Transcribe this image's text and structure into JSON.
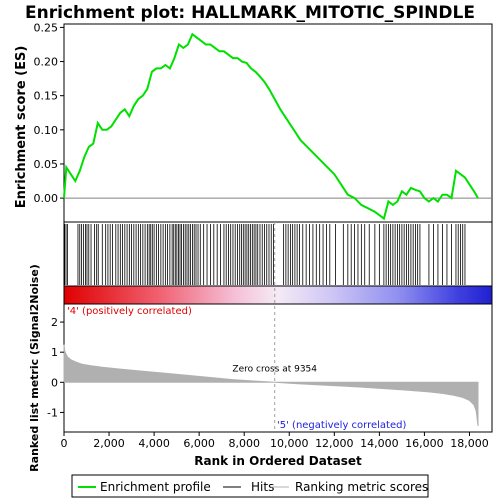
{
  "chart_data": {
    "type": "line",
    "title": "Enrichment plot: HALLMARK_MITOTIC_SPINDLE",
    "es_panel": {
      "ylabel": "Enrichment score (ES)",
      "ylim": [
        -0.035,
        0.255
      ],
      "yticks": [
        0.25,
        0.2,
        0.15,
        0.1,
        0.05,
        0.0
      ],
      "ytick_labels": [
        "0.25",
        "0.20",
        "0.15",
        "0.10",
        "0.05",
        "0.00"
      ],
      "series_name": "Enrichment profile",
      "line_color": "#00e000",
      "profile_x": [
        0,
        100,
        300,
        500,
        700,
        900,
        1100,
        1300,
        1500,
        1700,
        1900,
        2100,
        2300,
        2500,
        2700,
        2900,
        3100,
        3300,
        3500,
        3700,
        3900,
        4100,
        4300,
        4500,
        4700,
        4900,
        5100,
        5300,
        5500,
        5700,
        5900,
        6100,
        6300,
        6500,
        6700,
        6900,
        7100,
        7300,
        7500,
        7700,
        7900,
        8100,
        8300,
        8500,
        8700,
        8900,
        9100,
        9354,
        9600,
        9900,
        10200,
        10500,
        10800,
        11100,
        11400,
        11700,
        12000,
        12300,
        12600,
        12900,
        13200,
        13500,
        13800,
        14000,
        14200,
        14400,
        14600,
        14800,
        15000,
        15200,
        15400,
        15600,
        15800,
        16000,
        16200,
        16400,
        16600,
        16800,
        17000,
        17200,
        17400,
        17600,
        17800,
        18000,
        18200,
        18380
      ],
      "profile_y": [
        0.0,
        0.045,
        0.035,
        0.025,
        0.04,
        0.06,
        0.075,
        0.08,
        0.11,
        0.1,
        0.1,
        0.105,
        0.115,
        0.125,
        0.13,
        0.12,
        0.135,
        0.145,
        0.15,
        0.16,
        0.185,
        0.19,
        0.19,
        0.195,
        0.19,
        0.205,
        0.225,
        0.22,
        0.225,
        0.24,
        0.235,
        0.23,
        0.225,
        0.225,
        0.22,
        0.215,
        0.215,
        0.21,
        0.205,
        0.205,
        0.2,
        0.198,
        0.19,
        0.185,
        0.178,
        0.17,
        0.16,
        0.145,
        0.13,
        0.115,
        0.1,
        0.085,
        0.075,
        0.065,
        0.055,
        0.045,
        0.035,
        0.02,
        0.005,
        0.0,
        -0.01,
        -0.015,
        -0.02,
        -0.025,
        -0.03,
        -0.005,
        -0.01,
        -0.005,
        0.01,
        0.005,
        0.015,
        0.012,
        0.01,
        0.0,
        -0.005,
        0.0,
        -0.005,
        0.005,
        0.005,
        0.0,
        0.04,
        0.035,
        0.03,
        0.02,
        0.01,
        0.0
      ]
    },
    "hits_panel": {
      "series_name": "Hits",
      "hit_positions": [
        30,
        90,
        150,
        620,
        700,
        780,
        860,
        950,
        1020,
        1100,
        1200,
        1350,
        1450,
        1520,
        1700,
        1850,
        1950,
        2050,
        2150,
        2300,
        2400,
        2500,
        2600,
        2700,
        2800,
        2900,
        3000,
        3100,
        3200,
        3300,
        3400,
        3500,
        3600,
        3700,
        3780,
        3850,
        3920,
        4000,
        4100,
        4200,
        4300,
        4400,
        4500,
        4600,
        4700,
        4800,
        4870,
        4940,
        5010,
        5080,
        5150,
        5220,
        5300,
        5380,
        5460,
        5540,
        5620,
        5700,
        5780,
        5860,
        5950,
        6050,
        6200,
        6350,
        6500,
        6650,
        6800,
        6950,
        7100,
        7200,
        7300,
        7400,
        7500,
        7600,
        7700,
        7800,
        7880,
        7960,
        8040,
        8120,
        8200,
        8280,
        8360,
        8440,
        8520,
        8600,
        8700,
        8800,
        8900,
        9000,
        9100,
        9200,
        9300,
        9750,
        9850,
        9950,
        10050,
        10150,
        10250,
        10350,
        10450,
        10600,
        10750,
        10900,
        11050,
        11200,
        11350,
        11500,
        11650,
        11800,
        12050,
        12400,
        12600,
        12750,
        12900,
        13050,
        13200,
        13350,
        13550,
        13800,
        14000,
        14200,
        14300,
        14400,
        14500,
        14600,
        14700,
        14800,
        14900,
        15000,
        15100,
        15200,
        15300,
        15400,
        15500,
        15600,
        15700,
        15800,
        16200,
        16400,
        16600,
        16800,
        17000,
        17200,
        17400,
        17500,
        17600,
        17700,
        17800
      ]
    },
    "ranking_panel": {
      "label_pos": "'4' (positively correlated)",
      "label_neg": "'5' (negatively correlated)",
      "pos_color": "#e00000",
      "neg_color": "#2020e0"
    },
    "metric_panel": {
      "ylabel": "Ranked list metric (Signal2Noise)",
      "ylim": [
        -1.65,
        2.6
      ],
      "yticks": [
        2,
        1,
        0,
        -1
      ],
      "ytick_labels": [
        "2",
        "1",
        "0",
        "-1"
      ],
      "series_name": "Ranking metric scores",
      "fill_color": "#b0b0b0",
      "zero_cross_label": "Zero cross at 9354",
      "zero_cross": 9354,
      "metric_x": [
        0,
        30,
        80,
        150,
        300,
        500,
        800,
        1200,
        1700,
        2500,
        3500,
        4500,
        5500,
        6500,
        7500,
        8500,
        9354,
        10200,
        11200,
        12200,
        13200,
        14200,
        15200,
        16200,
        16800,
        17300,
        17700,
        18000,
        18200,
        18300,
        18380
      ],
      "metric_y": [
        1.25,
        1.05,
        0.95,
        0.85,
        0.75,
        0.68,
        0.6,
        0.55,
        0.5,
        0.44,
        0.37,
        0.3,
        0.23,
        0.16,
        0.09,
        0.04,
        0.0,
        -0.04,
        -0.08,
        -0.12,
        -0.16,
        -0.21,
        -0.26,
        -0.32,
        -0.37,
        -0.43,
        -0.5,
        -0.6,
        -0.75,
        -0.95,
        -1.45
      ]
    },
    "xlabel": "Rank in Ordered Dataset",
    "xlim": [
      0,
      19000
    ],
    "n_genes": 18380,
    "xticks": [
      0,
      2000,
      4000,
      6000,
      8000,
      10000,
      12000,
      14000,
      16000,
      18000
    ],
    "xtick_labels": [
      "0",
      "2,000",
      "4,000",
      "6,000",
      "8,000",
      "10,000",
      "12,000",
      "14,000",
      "16,000",
      "18,000"
    ],
    "legend": {
      "placement": "bottom",
      "entries": [
        "Enrichment profile",
        "Hits",
        "Ranking metric scores"
      ]
    }
  }
}
